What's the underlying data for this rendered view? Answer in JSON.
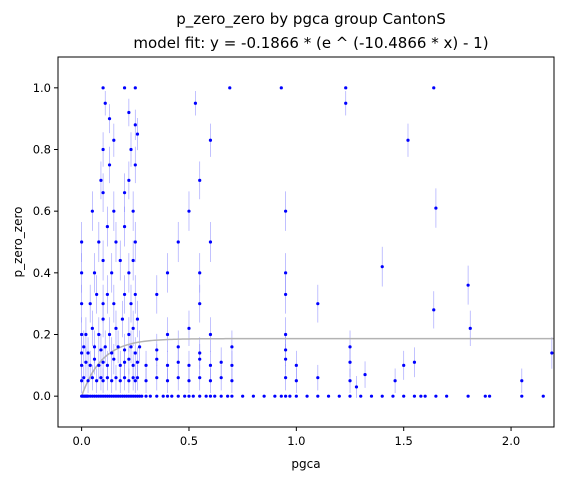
{
  "chart_data": {
    "type": "scatter",
    "title": "p_zero_zero by pgca group CantonS",
    "subtitle": "model fit: y = -0.1866 * (e ^ (-10.4866 * x) - 1)",
    "xlabel": "pgca",
    "ylabel": "p_zero_zero",
    "xlim": [
      -0.11,
      2.2
    ],
    "ylim": [
      -0.1,
      1.1
    ],
    "xticks": [
      "0.0",
      "0.5",
      "1.0",
      "1.5",
      "2.0"
    ],
    "yticks": [
      "0.0",
      "0.2",
      "0.4",
      "0.6",
      "0.8",
      "1.0"
    ],
    "grid": false,
    "fit": {
      "a": 0.1866,
      "b": 10.4866
    },
    "colors": {
      "points": "#0000ff",
      "errorbars": "#8a8aff",
      "fit": "#b3b3b3"
    },
    "x": [
      0.0,
      0.005,
      0.01,
      0.015,
      0.02,
      0.025,
      0.03,
      0.04,
      0.05,
      0.06,
      0.07,
      0.08,
      0.09,
      0.1,
      0.11,
      0.12,
      0.13,
      0.14,
      0.15,
      0.16,
      0.17,
      0.18,
      0.19,
      0.2,
      0.21,
      0.22,
      0.23,
      0.24,
      0.25,
      0.26,
      0.27,
      0.28,
      0.3,
      0.32,
      0.35,
      0.38,
      0.4,
      0.42,
      0.45,
      0.48,
      0.5,
      0.52,
      0.55,
      0.58,
      0.6,
      0.62,
      0.65,
      0.68,
      0.7,
      0.75,
      0.8,
      0.85,
      0.9,
      0.93,
      0.95,
      0.97,
      1.0,
      1.05,
      1.1,
      1.15,
      1.2,
      1.25,
      1.3,
      1.35,
      1.4,
      1.45,
      1.5,
      1.55,
      1.6,
      1.65,
      1.7,
      1.8,
      1.9,
      2.05,
      2.15,
      0.0,
      0.01,
      0.03,
      0.05,
      0.07,
      0.09,
      0.1,
      0.12,
      0.14,
      0.16,
      0.18,
      0.2,
      0.22,
      0.24,
      0.25,
      0.26,
      0.3,
      0.35,
      0.4,
      0.45,
      0.5,
      0.55,
      0.6,
      0.65,
      0.7,
      0.95,
      1.0,
      1.1,
      1.25,
      0.0,
      0.02,
      0.04,
      0.06,
      0.08,
      0.1,
      0.12,
      0.15,
      0.18,
      0.2,
      0.22,
      0.24,
      0.26,
      0.3,
      0.35,
      0.4,
      0.45,
      0.5,
      0.55,
      0.6,
      0.65,
      0.7,
      0.95,
      1.0,
      1.25,
      1.5,
      0.0,
      0.01,
      0.03,
      0.06,
      0.09,
      0.11,
      0.14,
      0.17,
      0.2,
      0.23,
      0.25,
      0.27,
      0.35,
      0.45,
      0.55,
      0.7,
      0.95,
      1.25,
      0.0,
      0.02,
      0.05,
      0.08,
      0.1,
      0.13,
      0.16,
      0.19,
      0.22,
      0.24,
      0.26,
      0.4,
      0.5,
      0.6,
      0.95,
      0.0,
      0.04,
      0.07,
      0.1,
      0.12,
      0.15,
      0.2,
      0.23,
      0.25,
      0.35,
      0.55,
      0.95,
      1.1,
      0.0,
      0.06,
      0.1,
      0.14,
      0.18,
      0.22,
      0.24,
      0.4,
      0.55,
      0.95,
      0.0,
      0.08,
      0.12,
      0.16,
      0.2,
      0.25,
      0.45,
      0.6,
      0.05,
      0.1,
      0.15,
      0.2,
      0.24,
      0.5,
      0.95,
      0.09,
      0.13,
      0.22,
      0.25,
      0.55,
      0.1,
      0.15,
      0.23,
      0.26,
      0.6,
      1.23,
      1.65,
      0.1,
      0.2,
      0.25,
      0.69,
      0.93,
      1.23,
      1.52,
      1.64,
      0.11,
      0.13,
      0.22,
      0.25,
      0.53,
      1.4,
      1.64,
      1.8,
      1.81,
      2.19,
      1.88,
      2.05,
      1.58,
      1.55,
      1.46,
      1.32,
      1.28
    ],
    "y": [
      0.0,
      0.0,
      0.0,
      0.0,
      0.0,
      0.0,
      0.0,
      0.0,
      0.0,
      0.0,
      0.0,
      0.0,
      0.0,
      0.0,
      0.0,
      0.0,
      0.0,
      0.0,
      0.0,
      0.0,
      0.0,
      0.0,
      0.0,
      0.0,
      0.0,
      0.0,
      0.0,
      0.0,
      0.0,
      0.0,
      0.0,
      0.0,
      0.0,
      0.0,
      0.0,
      0.0,
      0.0,
      0.0,
      0.0,
      0.0,
      0.0,
      0.0,
      0.0,
      0.0,
      0.0,
      0.0,
      0.0,
      0.0,
      0.0,
      0.0,
      0.0,
      0.0,
      0.0,
      0.0,
      0.0,
      0.0,
      0.0,
      0.0,
      0.0,
      0.0,
      0.0,
      0.0,
      0.0,
      0.0,
      0.0,
      0.0,
      0.0,
      0.0,
      0.0,
      0.0,
      0.0,
      0.0,
      0.0,
      0.0,
      0.0,
      0.05,
      0.06,
      0.05,
      0.06,
      0.05,
      0.06,
      0.05,
      0.06,
      0.05,
      0.06,
      0.05,
      0.06,
      0.05,
      0.06,
      0.05,
      0.06,
      0.05,
      0.06,
      0.05,
      0.06,
      0.05,
      0.06,
      0.05,
      0.06,
      0.05,
      0.06,
      0.05,
      0.06,
      0.05,
      0.1,
      0.11,
      0.1,
      0.12,
      0.1,
      0.11,
      0.1,
      0.12,
      0.1,
      0.11,
      0.12,
      0.1,
      0.11,
      0.1,
      0.12,
      0.1,
      0.11,
      0.1,
      0.12,
      0.1,
      0.11,
      0.1,
      0.12,
      0.1,
      0.11,
      0.1,
      0.14,
      0.16,
      0.14,
      0.16,
      0.15,
      0.16,
      0.14,
      0.16,
      0.15,
      0.16,
      0.14,
      0.16,
      0.15,
      0.16,
      0.14,
      0.16,
      0.15,
      0.16,
      0.2,
      0.2,
      0.22,
      0.2,
      0.25,
      0.2,
      0.22,
      0.25,
      0.2,
      0.22,
      0.25,
      0.2,
      0.22,
      0.2,
      0.2,
      0.3,
      0.3,
      0.33,
      0.3,
      0.33,
      0.3,
      0.33,
      0.3,
      0.33,
      0.33,
      0.3,
      0.33,
      0.3,
      0.4,
      0.4,
      0.44,
      0.4,
      0.44,
      0.4,
      0.44,
      0.4,
      0.4,
      0.4,
      0.5,
      0.5,
      0.55,
      0.5,
      0.55,
      0.5,
      0.5,
      0.5,
      0.6,
      0.66,
      0.6,
      0.66,
      0.6,
      0.6,
      0.6,
      0.7,
      0.75,
      0.7,
      0.75,
      0.7,
      0.8,
      0.83,
      0.8,
      0.85,
      0.83,
      0.95,
      0.61,
      1.0,
      1.0,
      1.0,
      1.0,
      1.0,
      1.0,
      0.83,
      1.0,
      0.95,
      0.9,
      0.92,
      0.88,
      0.95,
      0.42,
      0.28,
      0.36,
      0.22,
      0.14,
      0.0,
      0.05,
      0.0,
      0.11,
      0.05,
      0.07,
      0.03
    ]
  }
}
